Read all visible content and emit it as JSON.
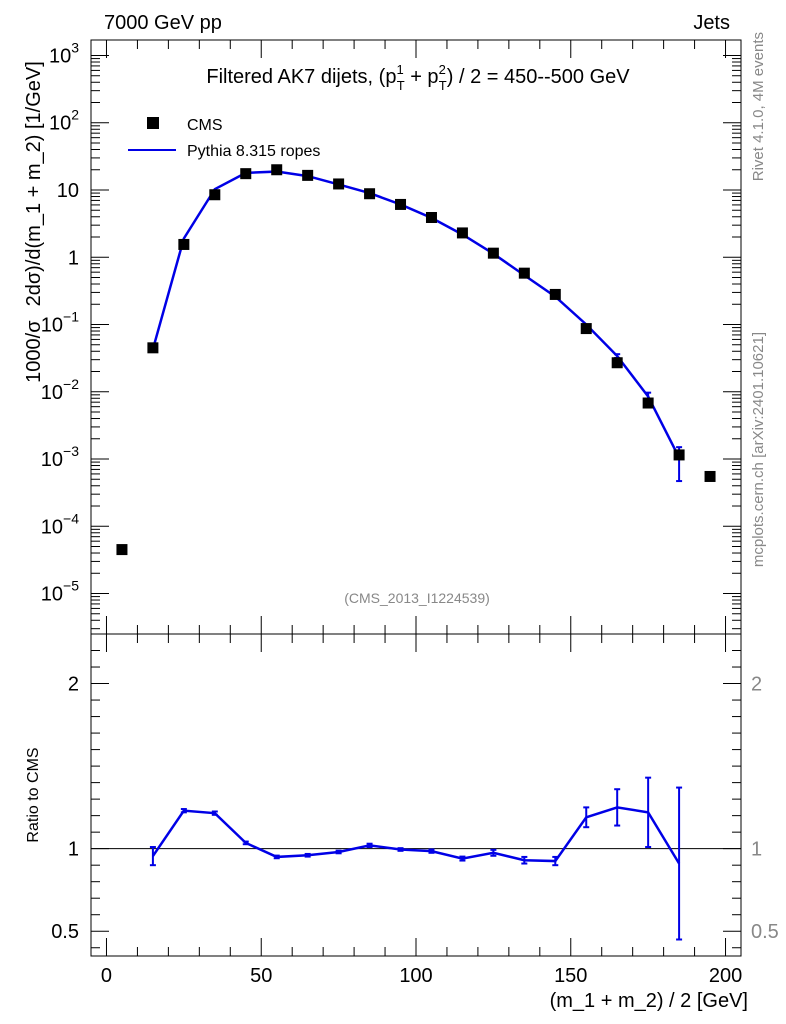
{
  "header": {
    "left": "7000 GeV pp",
    "right": "Jets"
  },
  "side_labels": {
    "rivet": "Rivet 4.1.0,  4M events",
    "mcplots": "mcplots.cern.ch [arXiv:2401.10621]"
  },
  "colors": {
    "data": "#000000",
    "mc": "#0000e6",
    "gray_text": "#888888"
  },
  "chart_data": [
    {
      "type": "scatter",
      "panel": "main",
      "title": "Filtered AK7 dijets, (p_T^1 + p_T^2) / 2 = 450--500 GeV",
      "title_parts": {
        "prefix": "Filtered AK7 dijets, (p",
        "sub1": "T",
        "sup1": "1",
        "mid": " + p",
        "sub2": "T",
        "sup2": "2",
        "suffix": ") / 2 = 450--500 GeV"
      },
      "ylabel_parts": {
        "prefix": "1000/σ",
        "suffix": "2dσ)/d(m_1 + m_2) [1/GeV]"
      },
      "analysis_tag": "(CMS_2013_I1224539)",
      "yscale": "log",
      "xlim": [
        -5,
        205
      ],
      "ylim": [
        2.5e-06,
        1700
      ],
      "y_ticks": [
        {
          "value": 1e-05,
          "base": "10",
          "exp": "−5"
        },
        {
          "value": 0.0001,
          "base": "10",
          "exp": "−4"
        },
        {
          "value": 0.001,
          "base": "10",
          "exp": "−3"
        },
        {
          "value": 0.01,
          "base": "10",
          "exp": "−2"
        },
        {
          "value": 0.1,
          "base": "10",
          "exp": "−1"
        },
        {
          "value": 1,
          "base": "1",
          "exp": ""
        },
        {
          "value": 10,
          "base": "10",
          "exp": ""
        },
        {
          "value": 100,
          "base": "10",
          "exp": "2"
        },
        {
          "value": 1000,
          "base": "10",
          "exp": "3"
        }
      ],
      "legend_position": "top-left",
      "series": [
        {
          "name": "CMS",
          "style": "markers",
          "x": [
            5,
            15,
            25,
            35,
            45,
            55,
            65,
            75,
            85,
            95,
            105,
            115,
            125,
            135,
            145,
            155,
            165,
            175,
            185,
            195
          ],
          "y": [
            4.5e-05,
            0.045,
            1.55,
            8.5,
            17.5,
            20,
            16.5,
            12.3,
            8.8,
            6.1,
            3.9,
            2.3,
            1.15,
            0.58,
            0.28,
            0.087,
            0.027,
            0.0068,
            0.00115,
            0.00055
          ]
        },
        {
          "name": "Pythia 8.315 ropes",
          "style": "line",
          "x": [
            15,
            25,
            35,
            45,
            55,
            65,
            75,
            85,
            95,
            105,
            115,
            125,
            135,
            145,
            155,
            165,
            175,
            185
          ],
          "y": [
            0.043,
            1.9,
            10.3,
            18.0,
            18.8,
            16.1,
            12.1,
            9.0,
            6.1,
            3.85,
            2.18,
            1.13,
            0.54,
            0.26,
            0.1,
            0.034,
            0.0085,
            0.00105
          ],
          "err_low": [
            0,
            0,
            0,
            0,
            0,
            0,
            0,
            0,
            0,
            0,
            0,
            0,
            0,
            0,
            0,
            0.0022,
            0.0012,
            0.00058
          ],
          "err_high": [
            0,
            0,
            0,
            0,
            0,
            0,
            0,
            0,
            0,
            0,
            0,
            0,
            0,
            0,
            0,
            0.0022,
            0.0012,
            0.00045
          ]
        }
      ]
    },
    {
      "type": "line",
      "panel": "ratio",
      "ylabel": "Ratio to CMS",
      "xlabel": "(m_1 + m_2) / 2 [GeV]",
      "xlim": [
        -5,
        205
      ],
      "ylim": [
        0.35,
        2.3
      ],
      "x_ticks": [
        0,
        50,
        100,
        150,
        200
      ],
      "y_ticks": [
        0.5,
        1,
        2
      ],
      "reference_line": 1,
      "series": [
        {
          "name": "Pythia 8.315 ropes",
          "x": [
            15,
            25,
            35,
            45,
            55,
            65,
            75,
            85,
            95,
            105,
            115,
            125,
            135,
            145,
            155,
            165,
            175,
            185
          ],
          "y": [
            0.955,
            1.23,
            1.215,
            1.035,
            0.95,
            0.96,
            0.98,
            1.02,
            0.995,
            0.985,
            0.94,
            0.975,
            0.93,
            0.925,
            1.19,
            1.25,
            1.22,
            0.91
          ],
          "err": [
            0.055,
            0.01,
            0.01,
            0.008,
            0.008,
            0.008,
            0.008,
            0.01,
            0.008,
            0.01,
            0.012,
            0.018,
            0.02,
            0.025,
            0.06,
            0.11,
            0.21,
            0.46
          ]
        }
      ]
    }
  ]
}
